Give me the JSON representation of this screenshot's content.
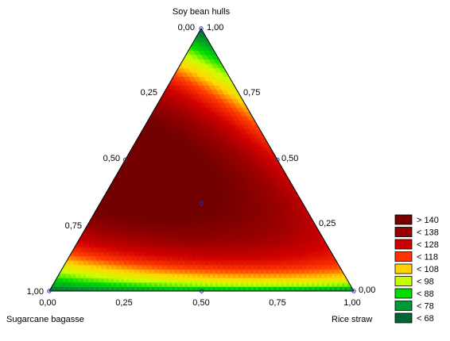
{
  "chart_data": {
    "type": "heatmap",
    "subtype": "ternary-contour",
    "title": "",
    "vertices": {
      "top": "Soy bean hulls",
      "bottom_left": "Sugarcane bagasse",
      "bottom_right": "Rice straw"
    },
    "edge_ticks": {
      "bottom": [
        "0,00",
        "0,25",
        "0,50",
        "0,75",
        "1,00"
      ],
      "left": [
        "1,00",
        "0,75",
        "0,50",
        "0,25",
        "0,00"
      ],
      "right": [
        "1,00",
        "0,75",
        "0,50",
        "0,25",
        "0,00"
      ]
    },
    "design_points": [
      {
        "soy": 1.0,
        "sugarcane": 0.0,
        "rice": 0.0
      },
      {
        "soy": 0.0,
        "sugarcane": 1.0,
        "rice": 0.0
      },
      {
        "soy": 0.0,
        "sugarcane": 0.0,
        "rice": 1.0
      },
      {
        "soy": 0.5,
        "sugarcane": 0.5,
        "rice": 0.0
      },
      {
        "soy": 0.5,
        "sugarcane": 0.0,
        "rice": 0.5
      },
      {
        "soy": 0.0,
        "sugarcane": 0.5,
        "rice": 0.5
      },
      {
        "soy": 0.333,
        "sugarcane": 0.333,
        "rice": 0.333
      }
    ],
    "value_range": [
      60,
      148
    ],
    "legend": {
      "placement": "right",
      "items": [
        {
          "label": "> 140",
          "color": "#7a0000"
        },
        {
          "label": "< 138",
          "color": "#9a0000"
        },
        {
          "label": "< 128",
          "color": "#cc0000"
        },
        {
          "label": "< 118",
          "color": "#ff3300"
        },
        {
          "label": "< 108",
          "color": "#ffd200"
        },
        {
          "label": "< 98",
          "color": "#c8ff00"
        },
        {
          "label": "< 88",
          "color": "#00dd00"
        },
        {
          "label": "< 78",
          "color": "#009933"
        },
        {
          "label": "< 68",
          "color": "#006633"
        }
      ]
    }
  }
}
